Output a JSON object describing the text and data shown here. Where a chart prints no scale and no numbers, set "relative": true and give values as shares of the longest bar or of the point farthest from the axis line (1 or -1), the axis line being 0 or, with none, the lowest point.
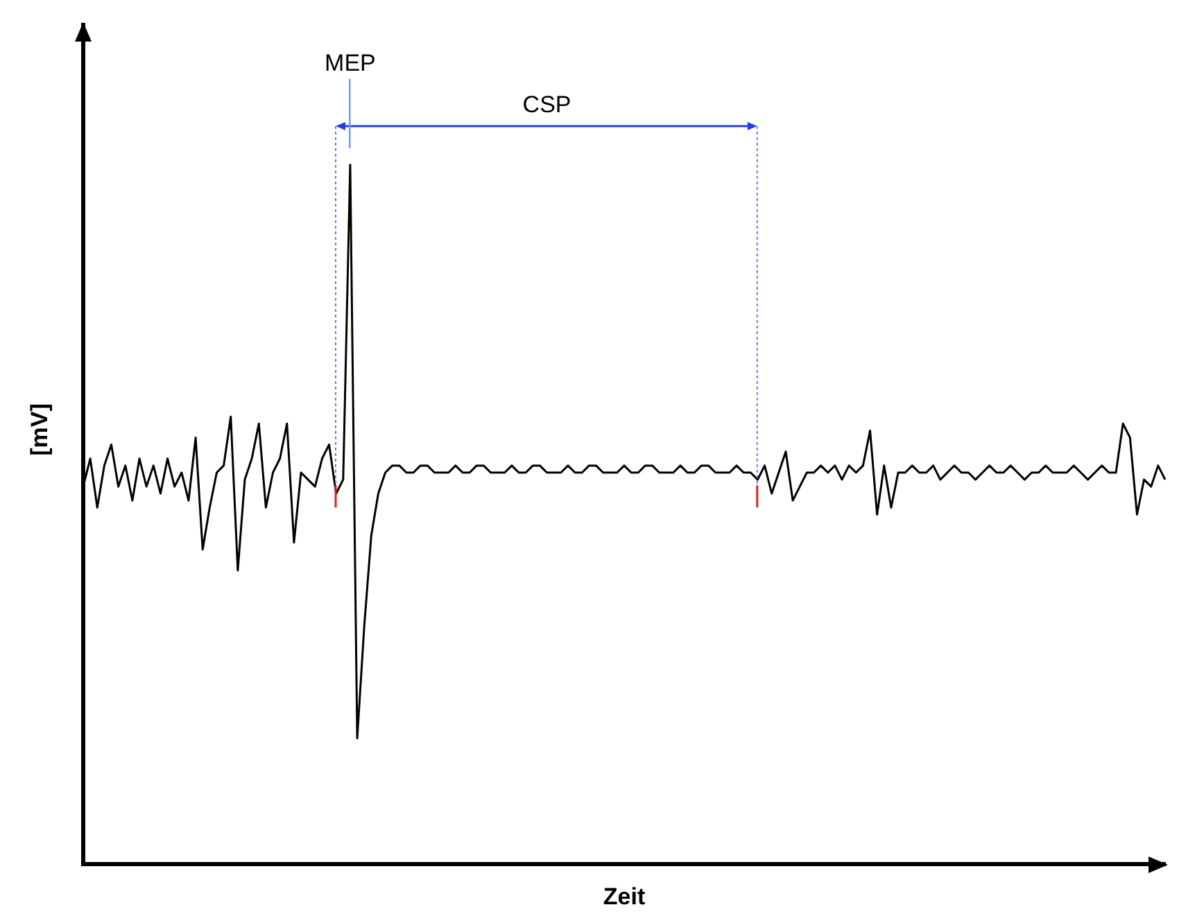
{
  "chart_data": {
    "type": "line",
    "relative": true,
    "xlabel": "Zeit",
    "ylabel": "[mV]",
    "grid": false,
    "marker": "none",
    "line_style": "solid",
    "color": "#000000",
    "annotations": [
      "MEP",
      "CSP"
    ],
    "categories": [
      null,
      null,
      null,
      null,
      null,
      null,
      null,
      null,
      null,
      null,
      null,
      null,
      null,
      null,
      null,
      null,
      null,
      null,
      null,
      null,
      null,
      null,
      null,
      null,
      null,
      null,
      null,
      null,
      null,
      null,
      null,
      null,
      null,
      null,
      null,
      null,
      null,
      null,
      null,
      null,
      null,
      null,
      null,
      null,
      null,
      null,
      null,
      null,
      null,
      null,
      null,
      null,
      null,
      null,
      null,
      null,
      null,
      null,
      null,
      null,
      null,
      null,
      null,
      null,
      null,
      null,
      null,
      null,
      null,
      null,
      null,
      null,
      null,
      null,
      null,
      null,
      null,
      null,
      null,
      null,
      null,
      null,
      null,
      null,
      null,
      null,
      null,
      null,
      null,
      null,
      null,
      null,
      null,
      null,
      null,
      null,
      null,
      null,
      null,
      null,
      null,
      null,
      null,
      null,
      null,
      null,
      null,
      null,
      null,
      null,
      null,
      null,
      null,
      null,
      null,
      null,
      null,
      null,
      null,
      null,
      null,
      null,
      null,
      null,
      null,
      null,
      null,
      null,
      null,
      null,
      null,
      null,
      null,
      null,
      null,
      null,
      null,
      null,
      null,
      null,
      null,
      null,
      null,
      null,
      null,
      null,
      null,
      null,
      null,
      null,
      null,
      null,
      null,
      null,
      null
    ],
    "values": [
      0.54,
      0.58,
      0.51,
      0.57,
      0.6,
      0.54,
      0.57,
      0.52,
      0.58,
      0.54,
      0.57,
      0.53,
      0.58,
      0.54,
      0.56,
      0.52,
      0.61,
      0.45,
      0.51,
      0.56,
      0.57,
      0.64,
      0.42,
      0.55,
      0.58,
      0.63,
      0.51,
      0.56,
      0.58,
      0.63,
      0.46,
      0.56,
      0.55,
      0.54,
      0.58,
      0.6,
      0.53,
      0.55,
      1,
      0.18,
      0.34,
      0.47,
      0.53,
      0.56,
      0.57,
      0.57,
      0.56,
      0.56,
      0.57,
      0.57,
      0.56,
      0.56,
      0.56,
      0.57,
      0.56,
      0.56,
      0.57,
      0.57,
      0.56,
      0.56,
      0.56,
      0.57,
      0.56,
      0.56,
      0.57,
      0.57,
      0.56,
      0.56,
      0.56,
      0.57,
      0.56,
      0.56,
      0.57,
      0.57,
      0.56,
      0.56,
      0.56,
      0.57,
      0.56,
      0.56,
      0.57,
      0.57,
      0.56,
      0.56,
      0.56,
      0.57,
      0.56,
      0.56,
      0.57,
      0.57,
      0.56,
      0.56,
      0.56,
      0.57,
      0.56,
      0.56,
      0.55,
      0.57,
      0.53,
      0.56,
      0.59,
      0.52,
      0.54,
      0.56,
      0.56,
      0.57,
      0.56,
      0.57,
      0.55,
      0.57,
      0.56,
      0.57,
      0.62,
      0.5,
      0.57,
      0.51,
      0.56,
      0.56,
      0.57,
      0.56,
      0.56,
      0.57,
      0.55,
      0.56,
      0.57,
      0.56,
      0.56,
      0.55,
      0.56,
      0.57,
      0.56,
      0.56,
      0.57,
      0.56,
      0.55,
      0.56,
      0.56,
      0.57,
      0.56,
      0.56,
      0.56,
      0.57,
      0.56,
      0.55,
      0.56,
      0.57,
      0.56,
      0.56,
      0.63,
      0.61,
      0.5,
      0.55,
      0.54,
      0.57,
      0.55
    ]
  }
}
